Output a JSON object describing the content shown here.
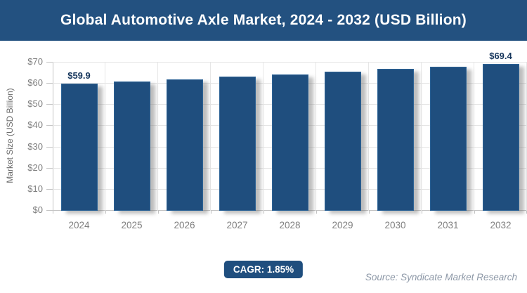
{
  "header": {
    "title": "Global Automotive Axle Market, 2024 - 2032 (USD Billion)"
  },
  "chart_data": {
    "type": "bar",
    "title": "Global Automotive Axle Market, 2024 - 2032 (USD Billion)",
    "categories": [
      "2024",
      "2025",
      "2026",
      "2027",
      "2028",
      "2029",
      "2030",
      "2031",
      "2032"
    ],
    "values": [
      59.9,
      61.0,
      62.1,
      63.3,
      64.4,
      65.6,
      66.9,
      68.1,
      69.4
    ],
    "value_labels": [
      "$59.9",
      "",
      "",
      "",
      "",
      "",
      "",
      "",
      "$69.4"
    ],
    "xlabel": "",
    "ylabel": "Market Size (USD Billion)",
    "ylim": [
      0,
      70
    ],
    "ytick_step": 10,
    "yticks": [
      "$0",
      "$10",
      "$20",
      "$30",
      "$40",
      "$50",
      "$60",
      "$70"
    ],
    "grid": true,
    "legend": "none",
    "bar_color": "#1F4E7E"
  },
  "footer": {
    "cagr_label": "CAGR: 1.85%",
    "source": "Source: Syndicate Market Research"
  },
  "colors": {
    "header_bg": "#235180",
    "bar_fill": "#1F4E7E",
    "bar_border": "#2d6396",
    "gridline": "#e4e4e4",
    "axis_line": "#c4c4c4",
    "tick_text": "#7f7f7f",
    "value_label_text": "#17375D",
    "title_text": "#ffffff",
    "source_text": "#8D98A7"
  }
}
